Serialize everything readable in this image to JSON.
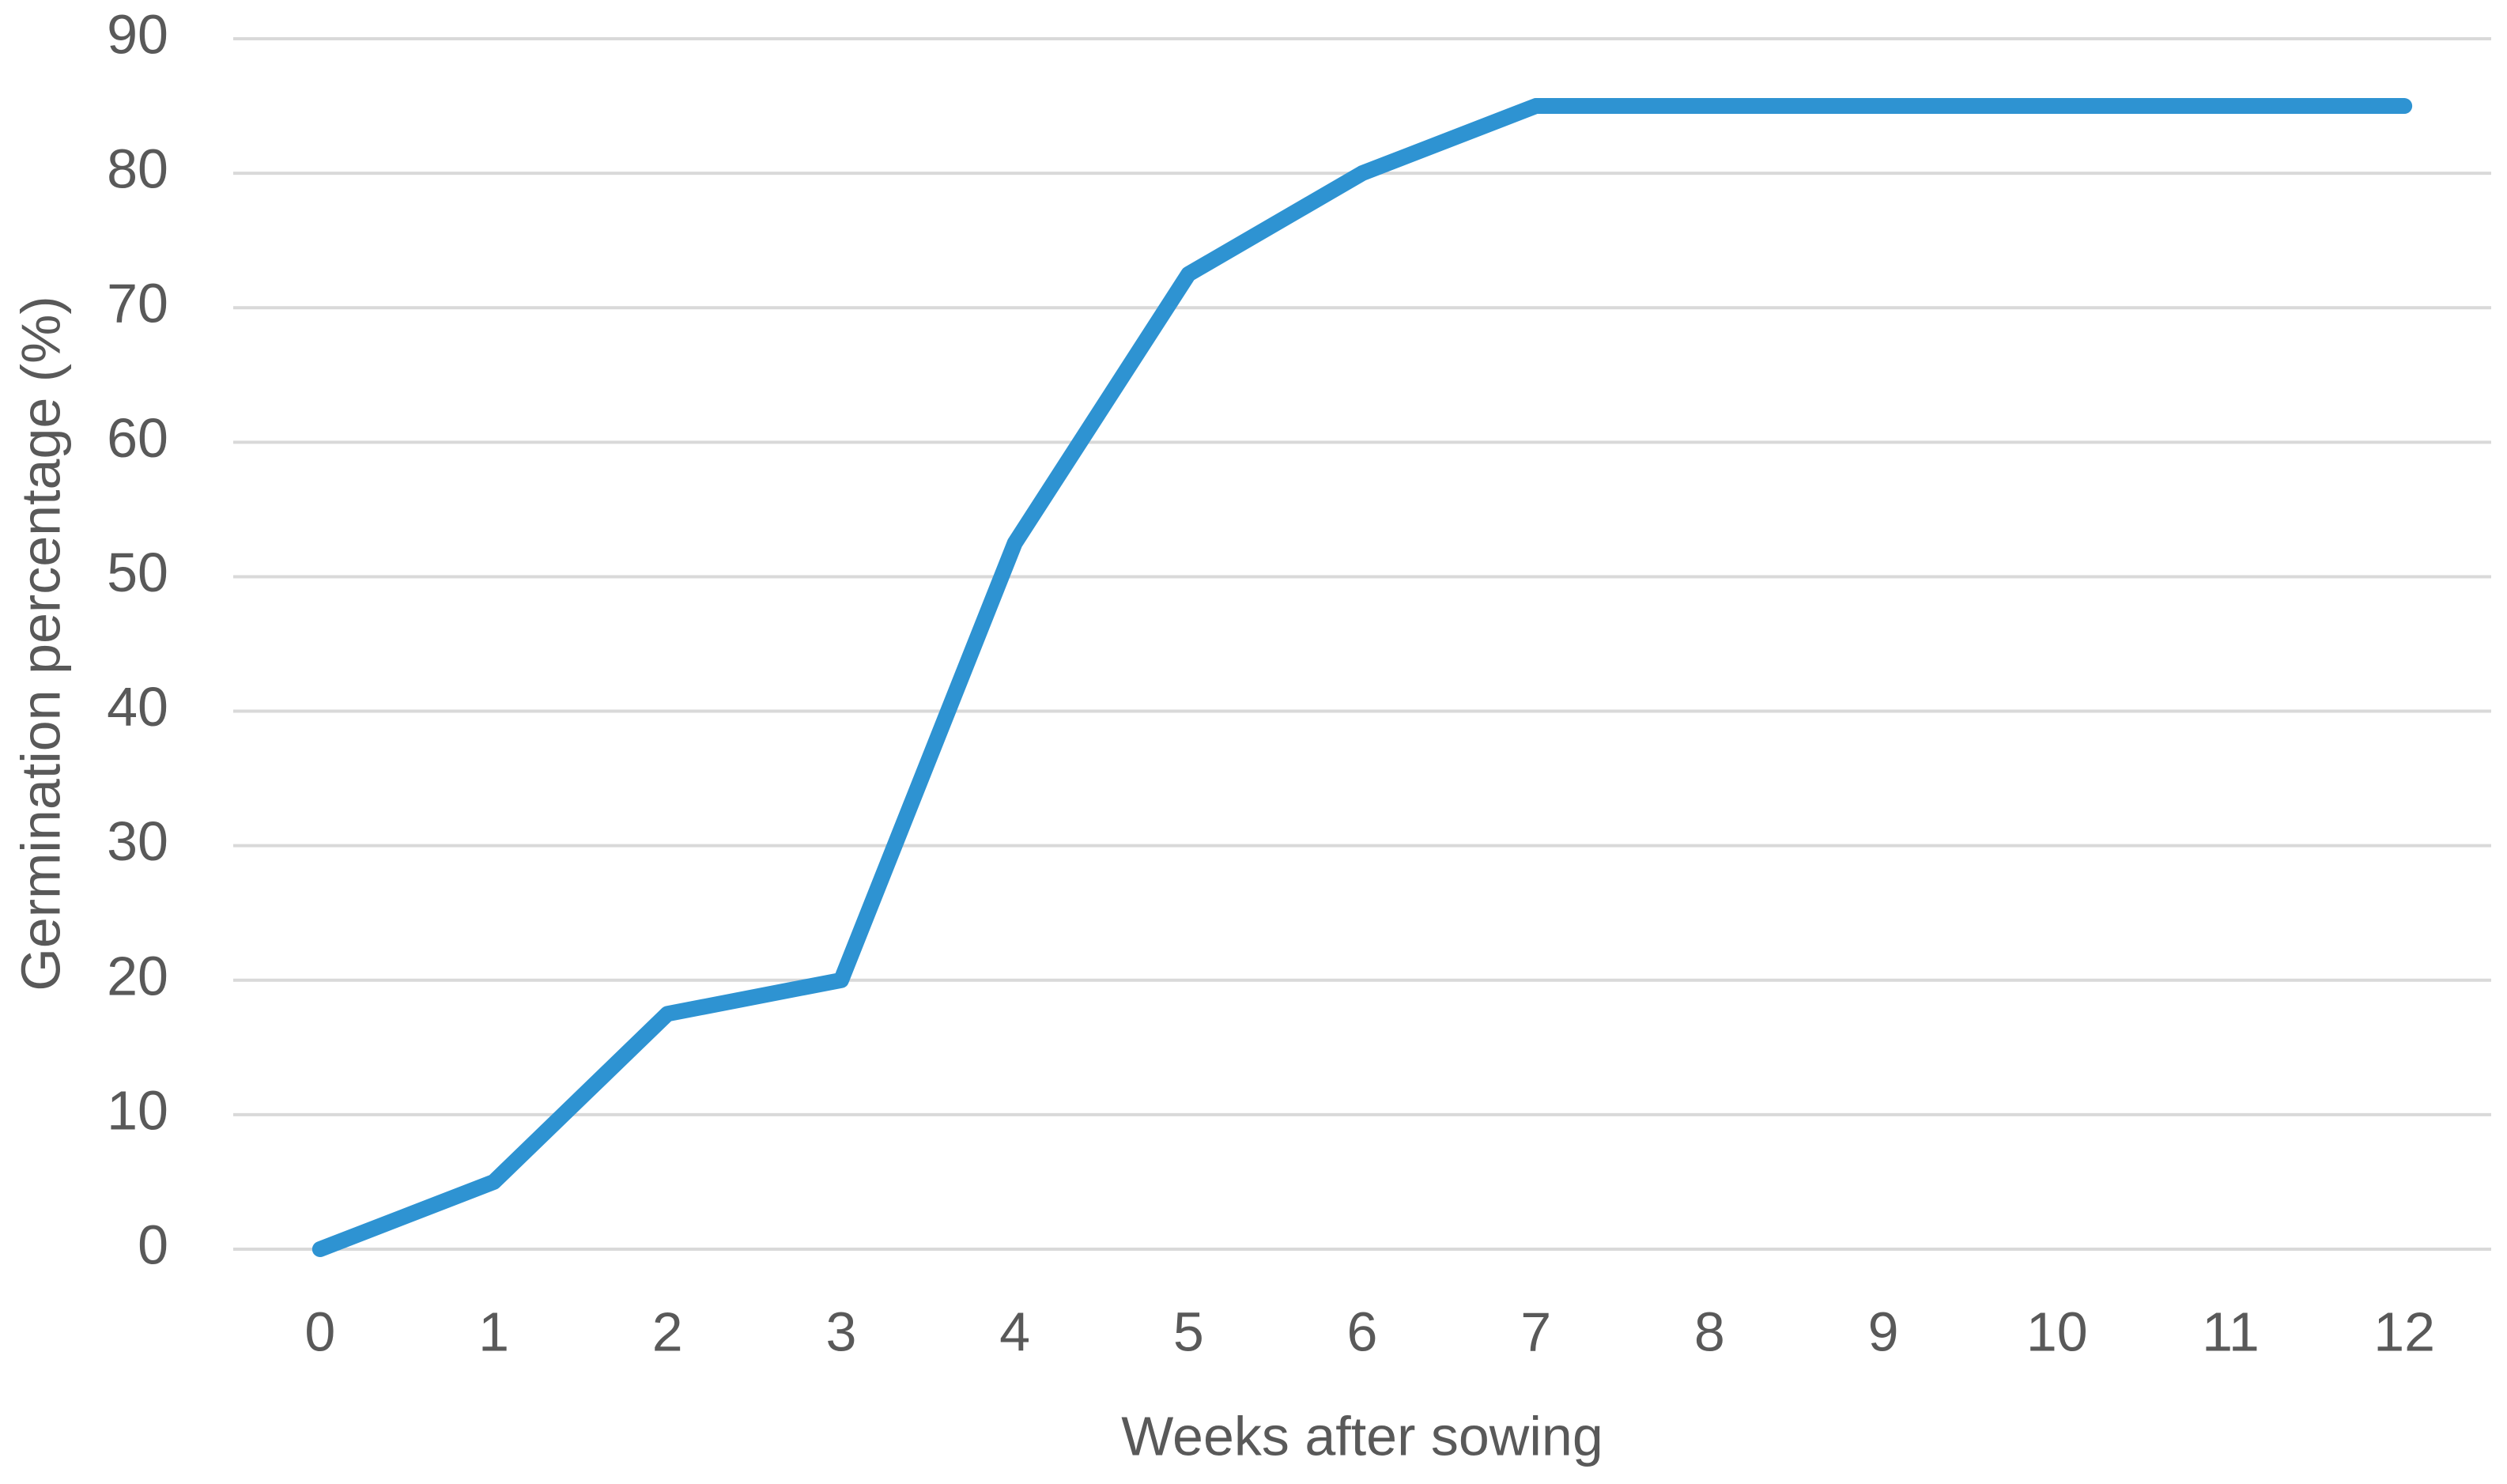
{
  "chart_data": {
    "type": "line",
    "x_label": "Weeks after sowing",
    "y_label": "Germination percentage (%)",
    "categories": [
      "0",
      "1",
      "2",
      "3",
      "4",
      "5",
      "6",
      "7",
      "8",
      "9",
      "10",
      "11",
      "12"
    ],
    "values": [
      0,
      5,
      17.5,
      20,
      52.5,
      72.5,
      80,
      85,
      85,
      85,
      85,
      85,
      85
    ],
    "color": "#2e93d2",
    "ylim": [
      0,
      90
    ],
    "yticks": [
      0,
      10,
      20,
      30,
      40,
      50,
      60,
      70,
      80,
      90
    ],
    "grid": true
  }
}
